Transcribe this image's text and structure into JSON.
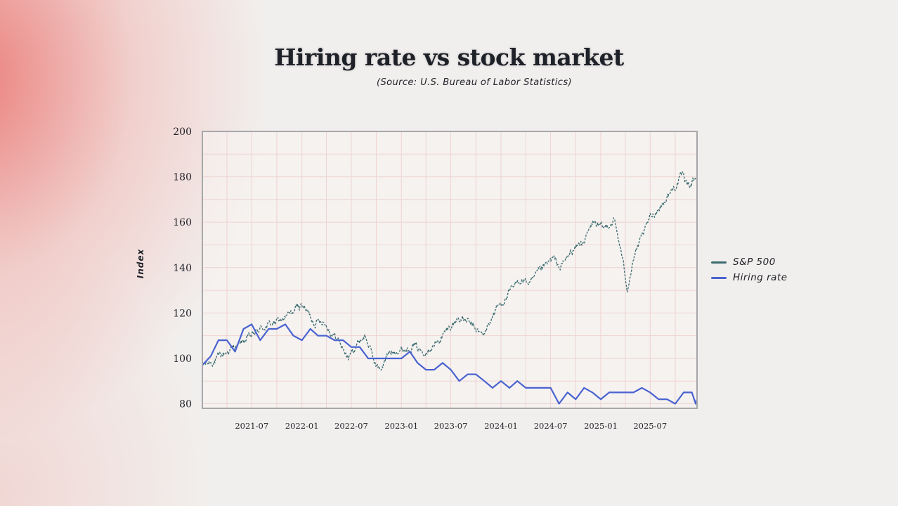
{
  "colors": {
    "sp500": "#3a6b6e",
    "hiring": "#4a63d0",
    "grid": "#efd3d1",
    "frame": "#a7a7ab"
  },
  "chart_data": {
    "type": "line",
    "title": "Hiring rate vs stock market",
    "subtitle": "(Source: U.S. Bureau of Labor Statistics)",
    "xlabel": "",
    "ylabel": "Index",
    "xlim": [
      "2021-01-01",
      "2025-12-20"
    ],
    "ylim": [
      78,
      200
    ],
    "y_ticks": [
      80,
      100,
      120,
      140,
      160,
      180,
      200
    ],
    "x_ticks": [
      "2021-07",
      "2022-01",
      "2022-07",
      "2023-01",
      "2023-07",
      "2024-01",
      "2024-07",
      "2025-01",
      "2025-07"
    ],
    "grid": true,
    "legend_position": "right",
    "series": [
      {
        "name": "S&P 500",
        "style": "noisy-daily",
        "points": [
          [
            "2021-01-01",
            97
          ],
          [
            "2021-02-15",
            99
          ],
          [
            "2021-04-01",
            103
          ],
          [
            "2021-05-15",
            106
          ],
          [
            "2021-07-01",
            110
          ],
          [
            "2021-08-15",
            114
          ],
          [
            "2021-10-01",
            116
          ],
          [
            "2021-11-15",
            119
          ],
          [
            "2022-01-01",
            124
          ],
          [
            "2022-02-15",
            116
          ],
          [
            "2022-03-20",
            117
          ],
          [
            "2022-04-15",
            112
          ],
          [
            "2022-05-15",
            108
          ],
          [
            "2022-06-20",
            100
          ],
          [
            "2022-08-01",
            108
          ],
          [
            "2022-08-20",
            110
          ],
          [
            "2022-09-30",
            97
          ],
          [
            "2022-10-15",
            95
          ],
          [
            "2022-11-15",
            102
          ],
          [
            "2022-12-15",
            104
          ],
          [
            "2023-01-15",
            104
          ],
          [
            "2023-02-15",
            106
          ],
          [
            "2023-03-15",
            103
          ],
          [
            "2023-04-15",
            105
          ],
          [
            "2023-05-15",
            107
          ],
          [
            "2023-06-15",
            112
          ],
          [
            "2023-07-30",
            118
          ],
          [
            "2023-09-01",
            116
          ],
          [
            "2023-10-27",
            110
          ],
          [
            "2023-12-15",
            122
          ],
          [
            "2024-01-15",
            126
          ],
          [
            "2024-02-15",
            131
          ],
          [
            "2024-03-15",
            135
          ],
          [
            "2024-04-19",
            133
          ],
          [
            "2024-05-20",
            138
          ],
          [
            "2024-07-10",
            144
          ],
          [
            "2024-08-05",
            140
          ],
          [
            "2024-09-15",
            147
          ],
          [
            "2024-11-01",
            152
          ],
          [
            "2024-12-05",
            160
          ],
          [
            "2025-01-10",
            157
          ],
          [
            "2025-02-19",
            161
          ],
          [
            "2025-03-15",
            148
          ],
          [
            "2025-04-08",
            131
          ],
          [
            "2025-05-01",
            144
          ],
          [
            "2025-06-01",
            153
          ],
          [
            "2025-07-01",
            162
          ],
          [
            "2025-08-15",
            168
          ],
          [
            "2025-10-01",
            176
          ],
          [
            "2025-10-28",
            181
          ],
          [
            "2025-11-20",
            176
          ],
          [
            "2025-12-10",
            180
          ]
        ]
      },
      {
        "name": "Hiring rate",
        "style": "monthly",
        "points": [
          [
            "2021-01-01",
            97
          ],
          [
            "2021-02-01",
            101
          ],
          [
            "2021-03-01",
            108
          ],
          [
            "2021-04-01",
            108
          ],
          [
            "2021-05-01",
            103
          ],
          [
            "2021-06-01",
            113
          ],
          [
            "2021-07-01",
            115
          ],
          [
            "2021-08-01",
            108
          ],
          [
            "2021-09-01",
            113
          ],
          [
            "2021-10-01",
            113
          ],
          [
            "2021-11-01",
            115
          ],
          [
            "2021-12-01",
            110
          ],
          [
            "2022-01-01",
            108
          ],
          [
            "2022-02-01",
            113
          ],
          [
            "2022-03-01",
            110
          ],
          [
            "2022-04-01",
            110
          ],
          [
            "2022-05-01",
            108
          ],
          [
            "2022-06-01",
            108
          ],
          [
            "2022-07-01",
            105
          ],
          [
            "2022-08-01",
            105
          ],
          [
            "2022-09-01",
            100
          ],
          [
            "2022-10-01",
            100
          ],
          [
            "2022-11-01",
            100
          ],
          [
            "2022-12-01",
            100
          ],
          [
            "2023-01-01",
            100
          ],
          [
            "2023-02-01",
            103
          ],
          [
            "2023-03-01",
            98
          ],
          [
            "2023-04-01",
            95
          ],
          [
            "2023-05-01",
            95
          ],
          [
            "2023-06-01",
            98
          ],
          [
            "2023-07-01",
            95
          ],
          [
            "2023-08-01",
            90
          ],
          [
            "2023-09-01",
            93
          ],
          [
            "2023-10-01",
            93
          ],
          [
            "2023-11-01",
            90
          ],
          [
            "2023-12-01",
            87
          ],
          [
            "2024-01-01",
            90
          ],
          [
            "2024-02-01",
            87
          ],
          [
            "2024-03-01",
            90
          ],
          [
            "2024-04-01",
            87
          ],
          [
            "2024-05-01",
            87
          ],
          [
            "2024-06-01",
            87
          ],
          [
            "2024-07-01",
            87
          ],
          [
            "2024-08-01",
            80
          ],
          [
            "2024-09-01",
            85
          ],
          [
            "2024-10-01",
            82
          ],
          [
            "2024-11-01",
            87
          ],
          [
            "2024-12-01",
            85
          ],
          [
            "2025-01-01",
            82
          ],
          [
            "2025-02-01",
            85
          ],
          [
            "2025-03-01",
            85
          ],
          [
            "2025-04-01",
            85
          ],
          [
            "2025-05-01",
            85
          ],
          [
            "2025-06-01",
            87
          ],
          [
            "2025-07-01",
            85
          ],
          [
            "2025-08-01",
            82
          ],
          [
            "2025-09-01",
            82
          ],
          [
            "2025-10-01",
            80
          ],
          [
            "2025-11-01",
            85
          ],
          [
            "2025-12-01",
            85
          ],
          [
            "2025-12-15",
            80
          ],
          [
            "2025-12-20",
            82
          ]
        ]
      }
    ]
  }
}
